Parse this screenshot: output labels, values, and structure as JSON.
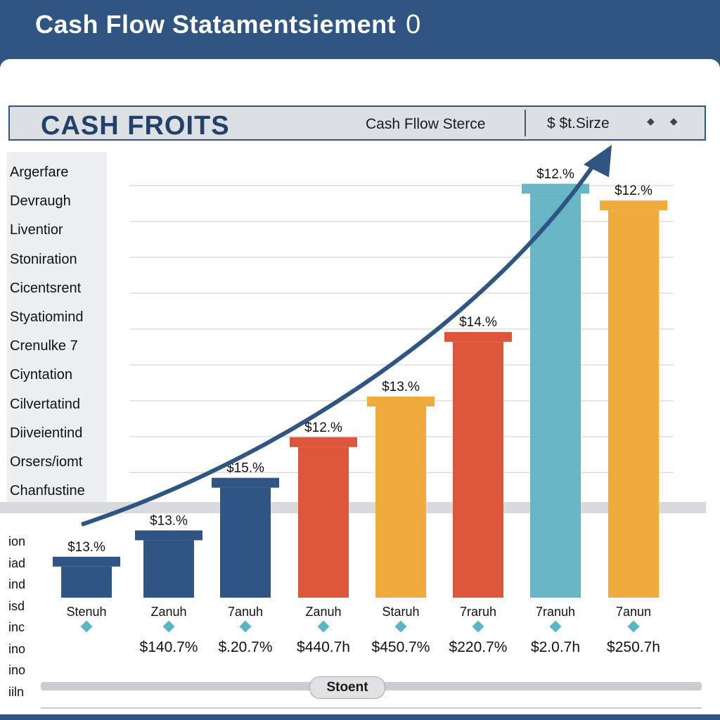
{
  "header": {
    "title": "Cash Flow Statamentsiement",
    "title_suffix": "0"
  },
  "banner": {
    "title": "CASH FROITS",
    "subtitle": "Cash Fllow Sterce",
    "currency": "$  $t.Sirze",
    "dots": "◆◆"
  },
  "side_labels": [
    "Argerfare",
    "Devraugh",
    "Liventior",
    "Stoniration",
    "Cicentsrent",
    "Styatiomind",
    "Crenulke  7",
    "Ciyntation",
    "Cilvertatind",
    "Diiveientind",
    "Orsers/iomt",
    "Chanfustine"
  ],
  "left_labels": [
    "ion",
    "iad",
    "ind",
    "isd",
    "inc",
    "ino",
    "ino",
    "iiln"
  ],
  "scrollbar": {
    "label": "Stoent"
  },
  "colors": {
    "navy": "#2f5683",
    "bar_navy": "#2e5583",
    "bar_red": "#dd553a",
    "bar_orange": "#efac3a",
    "bar_teal": "#67b6c6",
    "gridline": "#e4e6e9",
    "diamond": "#5ab6c2"
  },
  "chart_data": {
    "type": "bar",
    "categories": [
      "Stenuh",
      "Zanuh",
      "7anuh",
      "Zanuh",
      "Staruh",
      "7raruh",
      "7ranuh",
      "7anun"
    ],
    "values": [
      1.3,
      2.4,
      4.6,
      6.3,
      8.0,
      10.7,
      16.9,
      16.2
    ],
    "value_labels": [
      "$13.%",
      "$13.%",
      "$15.%",
      "$12.%",
      "$13.%",
      "$14.%",
      "$12.%",
      "$12.%"
    ],
    "sub_values": [
      "",
      "$140.7%",
      "$.20.7%",
      "$440.7h",
      "$450.7%",
      "$220.7%",
      "$2.0.7h",
      "$250.7h"
    ],
    "bar_colors": [
      "#2e5583",
      "#2e5583",
      "#2e5583",
      "#dd553a",
      "#efac3a",
      "#dd553a",
      "#67b6c6",
      "#efac3a"
    ],
    "ylim": [
      0,
      20
    ],
    "grid": true,
    "trend_arrow": true,
    "title": "",
    "xlabel": "",
    "ylabel": ""
  }
}
